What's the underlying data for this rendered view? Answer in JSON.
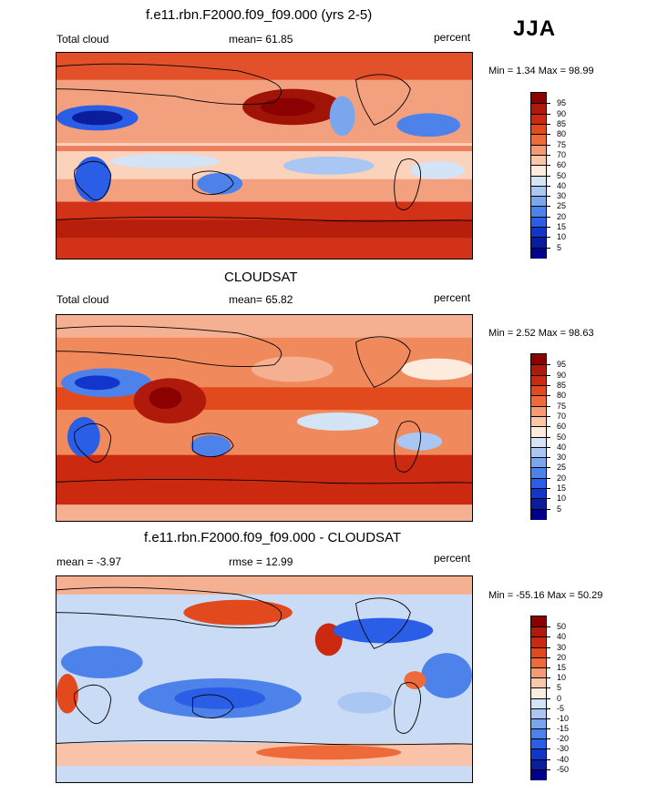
{
  "season": "JJA",
  "panels": [
    {
      "title": "f.e11.rbn.F2000.f09_f09.000 (yrs 2-5)",
      "left_label": "Total cloud",
      "center_label": "mean=  61.85",
      "units": "percent",
      "minmax": "Min =   1.34 Max =  98.99",
      "colorbar_labels": [
        "95",
        "90",
        "85",
        "80",
        "75",
        "70",
        "60",
        "50",
        "40",
        "30",
        "25",
        "20",
        "15",
        "10",
        "5"
      ],
      "colorbar_colors": [
        "#8b0000",
        "#b01a0a",
        "#cc2a10",
        "#e24a1e",
        "#ef6a3a",
        "#f59a73",
        "#fbc7a8",
        "#fdebdd",
        "#d4e4f7",
        "#a9c7f2",
        "#7aa6ee",
        "#4d82ea",
        "#2a5ee6",
        "#1236cc",
        "#0a1d9c",
        "#00008a"
      ]
    },
    {
      "title": "CLOUDSAT",
      "left_label": "Total cloud",
      "center_label": "mean=  65.82",
      "units": "percent",
      "minmax": "Min =   2.52 Max =  98.63",
      "colorbar_labels": [
        "95",
        "90",
        "85",
        "80",
        "75",
        "70",
        "60",
        "50",
        "40",
        "30",
        "25",
        "20",
        "15",
        "10",
        "5"
      ],
      "colorbar_colors": [
        "#8b0000",
        "#b01a0a",
        "#cc2a10",
        "#e24a1e",
        "#ef6a3a",
        "#f59a73",
        "#fbc7a8",
        "#fdebdd",
        "#d4e4f7",
        "#a9c7f2",
        "#7aa6ee",
        "#4d82ea",
        "#2a5ee6",
        "#1236cc",
        "#0a1d9c",
        "#00008a"
      ]
    },
    {
      "title": "f.e11.rbn.F2000.f09_f09.000 - CLOUDSAT",
      "left_label": "mean =  -3.97",
      "center_label": "rmse =  12.99",
      "units": "percent",
      "minmax": "Min = -55.16 Max =  50.29",
      "colorbar_labels": [
        "50",
        "40",
        "30",
        "20",
        "15",
        "10",
        "5",
        "0",
        "-5",
        "-10",
        "-15",
        "-20",
        "-30",
        "-40",
        "-50"
      ],
      "colorbar_colors": [
        "#8b0000",
        "#b01a0a",
        "#cc2a10",
        "#e24a1e",
        "#ef6a3a",
        "#f59a73",
        "#fbc7a8",
        "#fdebdd",
        "#d4e4f7",
        "#a9c7f2",
        "#7aa6ee",
        "#4d82ea",
        "#2a5ee6",
        "#1236cc",
        "#0a1d9c",
        "#00008a"
      ]
    }
  ]
}
